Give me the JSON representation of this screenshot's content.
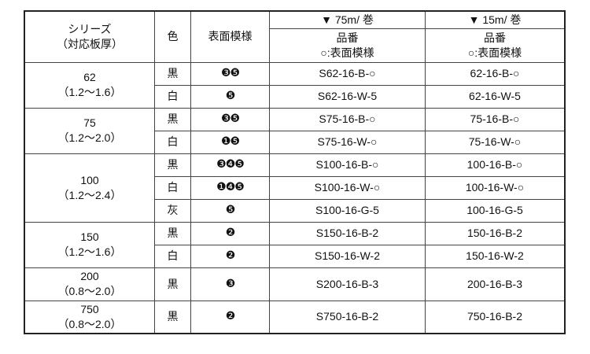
{
  "header": {
    "series": "シリーズ",
    "thickness": "（対応板厚）",
    "color": "色",
    "pattern": "表面模様",
    "col75": "▼ 75m/ 巻",
    "col15": "▼ 15m/ 巻",
    "part_no": "品番",
    "part_note": "○:表面模様"
  },
  "rows": [
    {
      "series": "62",
      "range": "（1.2～1.6）",
      "color": "黒",
      "pattern": "❸❺",
      "p75": "S62-16-B-○",
      "p15": "62-16-B-○"
    },
    {
      "color": "白",
      "pattern": "❺",
      "p75": "S62-16-W-5",
      "p15": "62-16-W-5"
    },
    {
      "series": "75",
      "range": "（1.2～2.0）",
      "color": "黒",
      "pattern": "❸❺",
      "p75": "S75-16-B-○",
      "p15": "75-16-B-○"
    },
    {
      "color": "白",
      "pattern": "❶❺",
      "p75": "S75-16-W-○",
      "p15": "75-16-W-○"
    },
    {
      "series": "100",
      "range": "（1.2～2.4）",
      "color": "黒",
      "pattern": "❸❹❺",
      "p75": "S100-16-B-○",
      "p15": "100-16-B-○"
    },
    {
      "color": "白",
      "pattern": "❶❹❺",
      "p75": "S100-16-W-○",
      "p15": "100-16-W-○"
    },
    {
      "color": "灰",
      "pattern": "❺",
      "p75": "S100-16-G-5",
      "p15": "100-16-G-5"
    },
    {
      "series": "150",
      "range": "（1.2～1.6）",
      "color": "黒",
      "pattern": "❷",
      "p75": "S150-16-B-2",
      "p15": "150-16-B-2"
    },
    {
      "color": "白",
      "pattern": "❷",
      "p75": "S150-16-W-2",
      "p15": "150-16-W-2"
    },
    {
      "series": "200",
      "range": "（0.8～2.0）",
      "color": "黒",
      "pattern": "❸",
      "p75": "S200-16-B-3",
      "p15": "200-16-B-3"
    },
    {
      "series": "750",
      "range": "（0.8～2.0）",
      "color": "黒",
      "pattern": "❷",
      "p75": "S750-16-B-2",
      "p15": "750-16-B-2"
    }
  ]
}
